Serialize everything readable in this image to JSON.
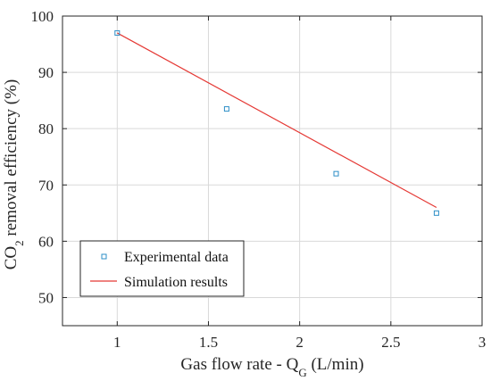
{
  "chart_data": {
    "type": "scatter",
    "x_ticks": [
      1,
      1.5,
      2,
      2.5,
      3
    ],
    "y_ticks": [
      50,
      60,
      70,
      80,
      90,
      100
    ],
    "x_tick_labels": [
      "1",
      "1.5",
      "2",
      "2.5",
      "3"
    ],
    "y_tick_labels": [
      "50",
      "60",
      "70",
      "80",
      "90",
      "100"
    ],
    "xlim": [
      0.7,
      3
    ],
    "ylim": [
      45,
      100
    ],
    "grid": true,
    "xlabel": {
      "prefix": "Gas flow rate - Q",
      "subscript": "G",
      "suffix": " (L/min)"
    },
    "ylabel": {
      "prefix": "CO",
      "subscript": "2",
      "suffix": " removal efficiency (%)"
    },
    "legend_position": "bottom-left",
    "series": [
      {
        "name": "Experimental data",
        "type": "scatter",
        "marker": "square",
        "color": "#2e8fc7",
        "x": [
          1,
          1.6,
          2.2,
          2.75
        ],
        "y": [
          97,
          83.5,
          72,
          65
        ]
      },
      {
        "name": "Simulation results",
        "type": "line",
        "color": "#e53935",
        "x": [
          1,
          2.75
        ],
        "y": [
          97,
          66
        ]
      }
    ]
  }
}
